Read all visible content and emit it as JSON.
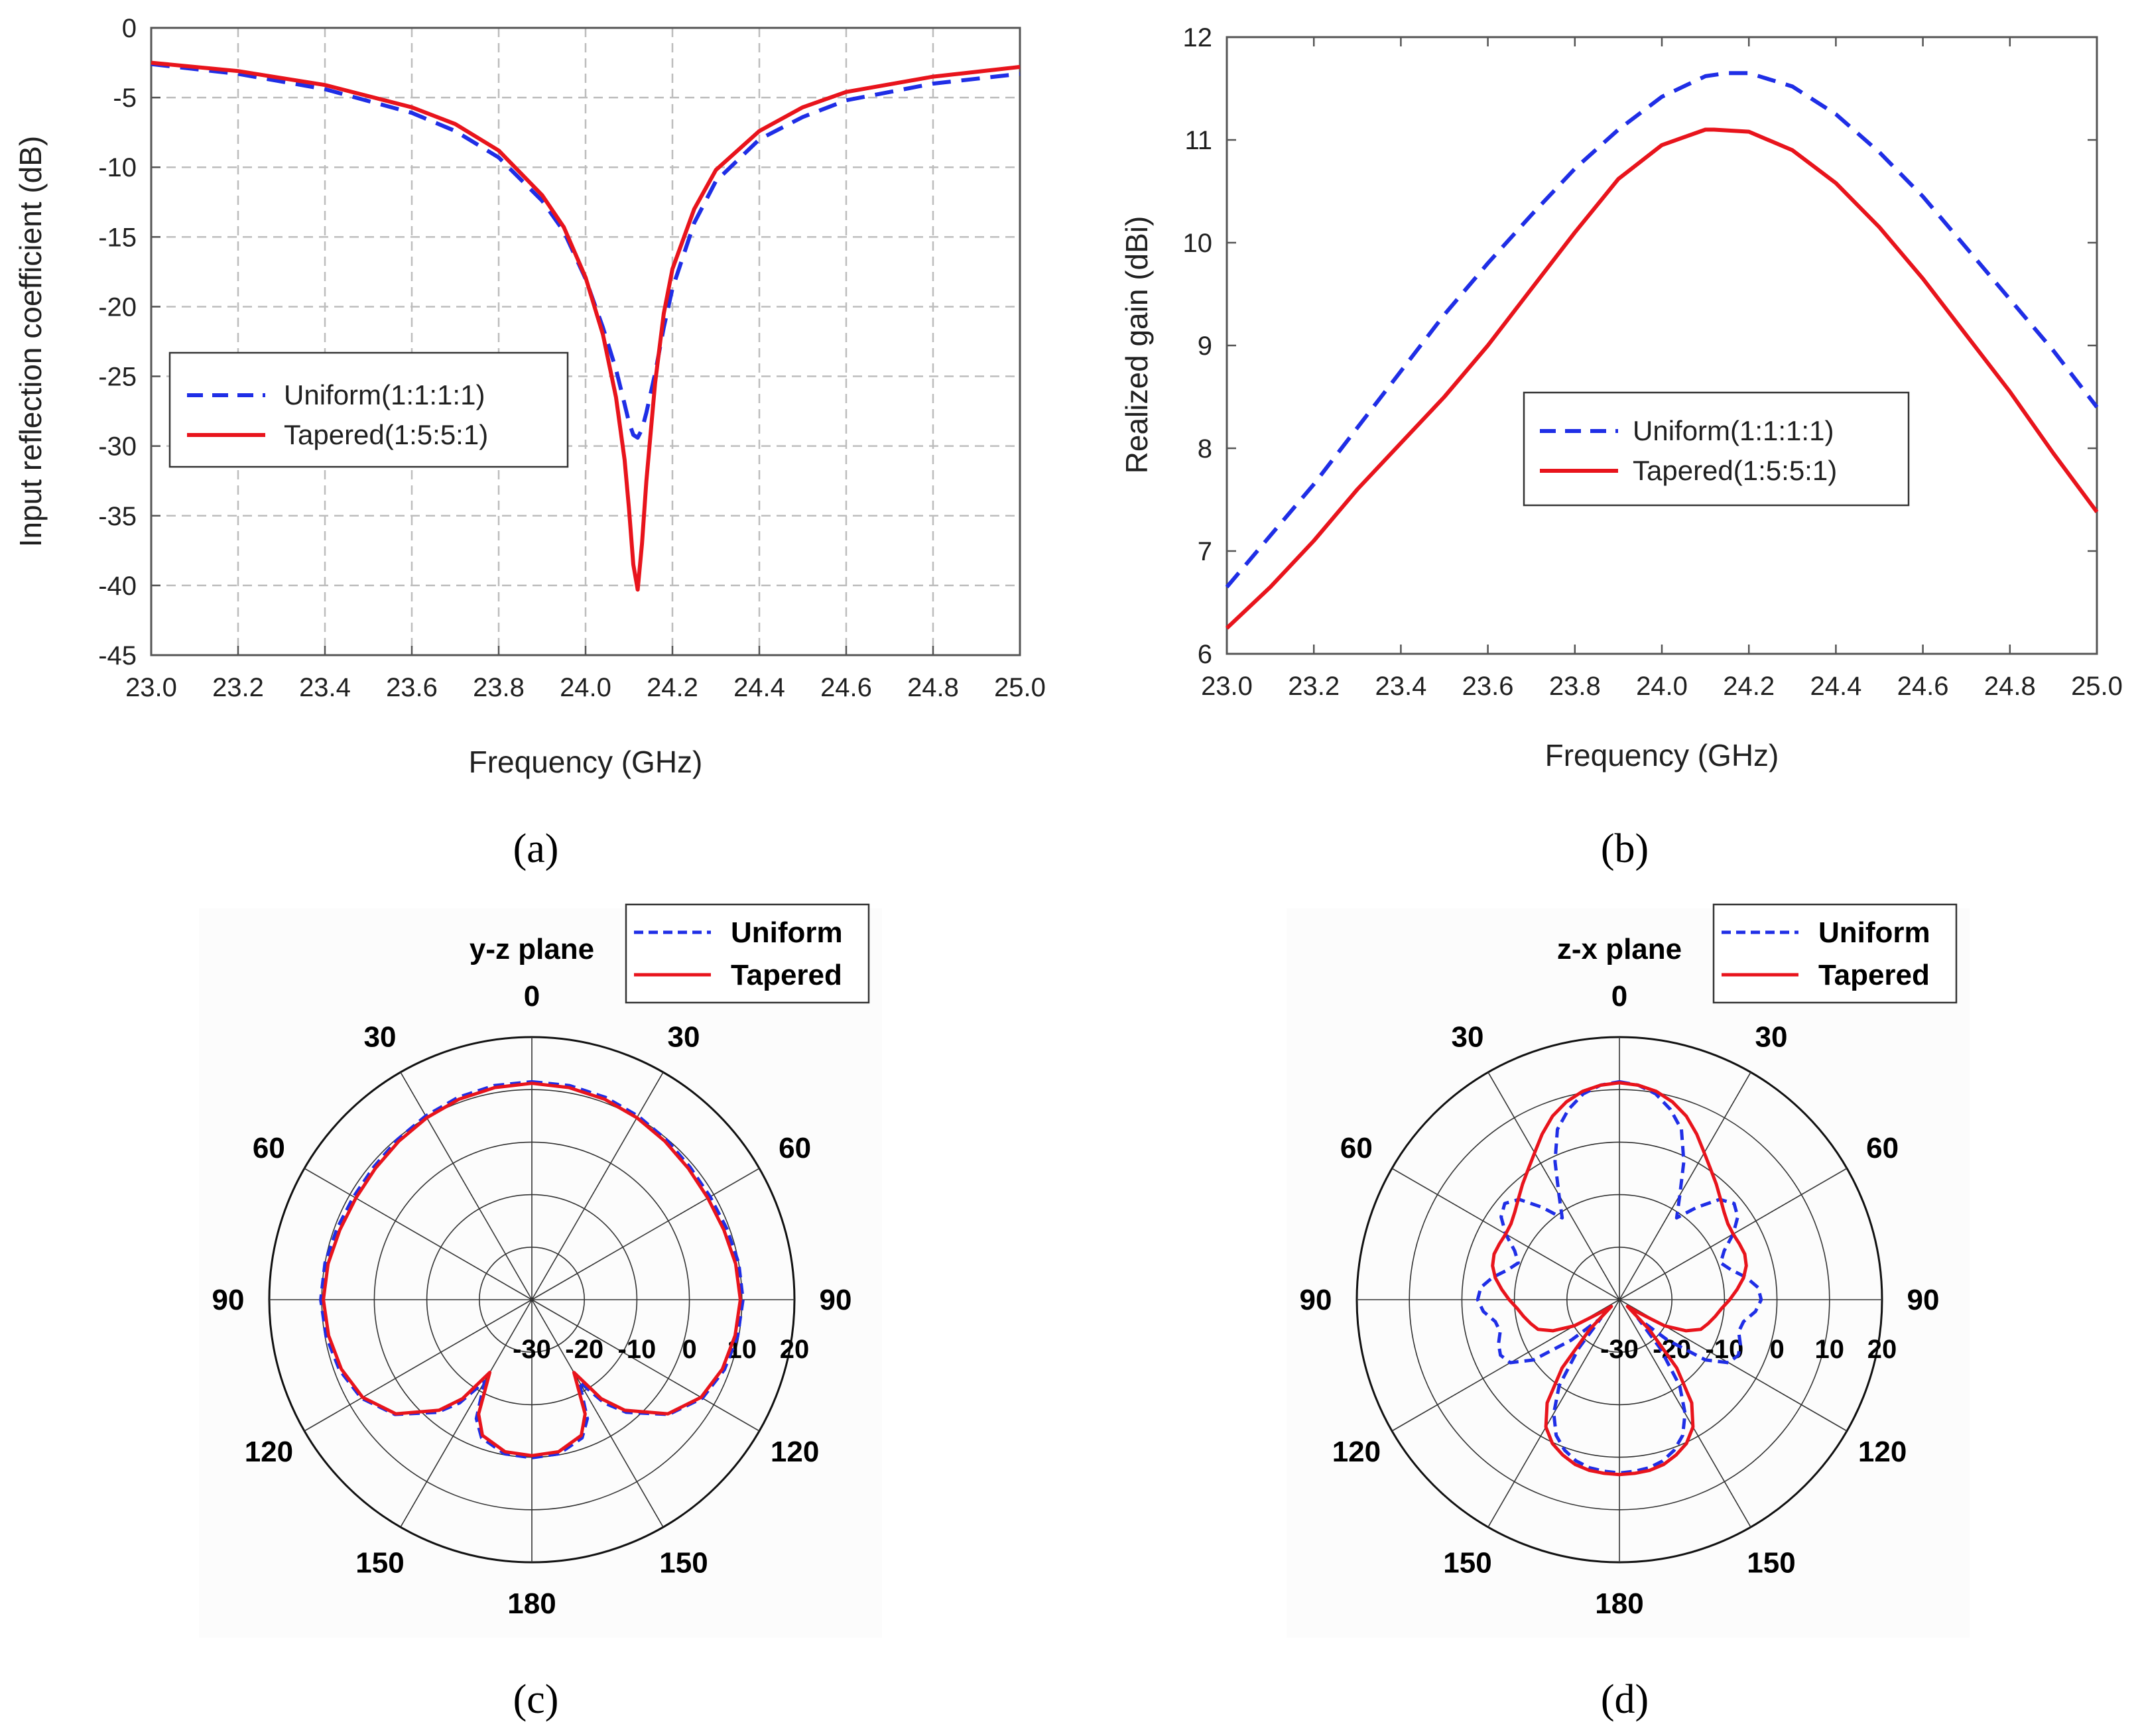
{
  "chart_data": [
    {
      "id": "a",
      "type": "line",
      "caption": "(a)",
      "xlabel": "Frequency (GHz)",
      "ylabel": "Input reflection coefficient (dB)",
      "xlim": [
        23.0,
        25.0
      ],
      "ylim": [
        -45,
        0
      ],
      "xticks": [
        "23.0",
        "23.2",
        "23.4",
        "23.6",
        "23.8",
        "24.0",
        "24.2",
        "24.4",
        "24.6",
        "24.8",
        "25.0"
      ],
      "yticks": [
        "0",
        "-5",
        "-10",
        "-15",
        "-20",
        "-25",
        "-30",
        "-35",
        "-40",
        "-45"
      ],
      "grid": true,
      "legend_position": "center-left",
      "series": [
        {
          "name": "Uniform(1:1:1:1)",
          "color": "#1f2ee6",
          "style": "dashed",
          "x": [
            23.0,
            23.2,
            23.4,
            23.6,
            23.7,
            23.8,
            23.9,
            23.95,
            24.0,
            24.04,
            24.07,
            24.09,
            24.1,
            24.11,
            24.12,
            24.13,
            24.14,
            24.16,
            24.18,
            24.2,
            24.25,
            24.3,
            24.4,
            24.5,
            24.6,
            24.8,
            25.0
          ],
          "y": [
            -2.6,
            -3.3,
            -4.4,
            -6.1,
            -7.4,
            -9.3,
            -12.4,
            -14.6,
            -18.0,
            -21.5,
            -24.5,
            -27.0,
            -28.3,
            -29.2,
            -29.4,
            -28.8,
            -27.6,
            -24.8,
            -21.5,
            -18.7,
            -14.0,
            -11.0,
            -8.0,
            -6.4,
            -5.2,
            -4.0,
            -3.3
          ]
        },
        {
          "name": "Tapered(1:5:5:1)",
          "color": "#e8141c",
          "style": "solid",
          "x": [
            23.0,
            23.2,
            23.4,
            23.6,
            23.7,
            23.8,
            23.9,
            23.95,
            24.0,
            24.04,
            24.07,
            24.09,
            24.1,
            24.11,
            24.12,
            24.13,
            24.14,
            24.16,
            24.18,
            24.2,
            24.25,
            24.3,
            24.4,
            24.5,
            24.6,
            24.8,
            25.0
          ],
          "y": [
            -2.5,
            -3.1,
            -4.1,
            -5.7,
            -6.9,
            -8.8,
            -12.0,
            -14.3,
            -17.9,
            -22.0,
            -26.5,
            -31.0,
            -34.5,
            -38.5,
            -40.3,
            -37.0,
            -32.5,
            -25.5,
            -20.5,
            -17.3,
            -13.0,
            -10.2,
            -7.4,
            -5.7,
            -4.6,
            -3.5,
            -2.8
          ]
        }
      ]
    },
    {
      "id": "b",
      "type": "line",
      "caption": "(b)",
      "xlabel": "Frequency (GHz)",
      "ylabel": "Realized gain (dBi)",
      "xlim": [
        23.0,
        25.0
      ],
      "ylim": [
        6,
        12
      ],
      "xticks": [
        "23.0",
        "23.2",
        "23.4",
        "23.6",
        "23.8",
        "24.0",
        "24.2",
        "24.4",
        "24.6",
        "24.8",
        "25.0"
      ],
      "yticks": [
        "12",
        "11",
        "10",
        "9",
        "8",
        "7",
        "6"
      ],
      "grid": false,
      "legend_position": "center-right",
      "series": [
        {
          "name": "Uniform(1:1:1:1)",
          "color": "#1f2ee6",
          "style": "dashed",
          "x": [
            23.0,
            23.1,
            23.2,
            23.3,
            23.4,
            23.5,
            23.6,
            23.7,
            23.8,
            23.9,
            24.0,
            24.1,
            24.15,
            24.2,
            24.3,
            24.4,
            24.5,
            24.6,
            24.7,
            24.8,
            24.9,
            25.0
          ],
          "y": [
            6.65,
            7.15,
            7.65,
            8.2,
            8.75,
            9.3,
            9.8,
            10.27,
            10.72,
            11.1,
            11.42,
            11.62,
            11.65,
            11.65,
            11.52,
            11.25,
            10.88,
            10.45,
            9.95,
            9.45,
            8.95,
            8.4
          ]
        },
        {
          "name": "Tapered(1:5:5:1)",
          "color": "#e8141c",
          "style": "solid",
          "x": [
            23.0,
            23.1,
            23.2,
            23.3,
            23.4,
            23.5,
            23.6,
            23.7,
            23.8,
            23.9,
            24.0,
            24.1,
            24.12,
            24.2,
            24.3,
            24.4,
            24.5,
            24.6,
            24.7,
            24.8,
            24.9,
            25.0
          ],
          "y": [
            6.25,
            6.65,
            7.1,
            7.6,
            8.05,
            8.5,
            9.0,
            9.55,
            10.1,
            10.62,
            10.95,
            11.1,
            11.1,
            11.08,
            10.9,
            10.58,
            10.15,
            9.65,
            9.1,
            8.55,
            7.95,
            7.38
          ]
        }
      ]
    },
    {
      "id": "c",
      "type": "polar",
      "caption": "(c)",
      "plane_label": "y-z plane",
      "angle_labels": [
        "0",
        "30",
        "60",
        "90",
        "120",
        "150",
        "180",
        "150",
        "120",
        "90",
        "60",
        "30"
      ],
      "radial_labels": [
        "-30",
        "-20",
        "-10",
        "0",
        "10",
        "20"
      ],
      "rlim": [
        -30,
        20
      ],
      "legend_position": "top-right",
      "series": [
        {
          "name": "Uniform",
          "color": "#1f2ee6",
          "style": "dashed",
          "theta": [
            0,
            10,
            20,
            30,
            40,
            50,
            60,
            70,
            80,
            90,
            100,
            110,
            120,
            130,
            140,
            145,
            150,
            155,
            160,
            170,
            180,
            190,
            200,
            205,
            210,
            215,
            220,
            230,
            240,
            250,
            260,
            270,
            280,
            290,
            300,
            310,
            320,
            330,
            340,
            350,
            360
          ],
          "r": [
            11.5,
            11.4,
            11.0,
            10.4,
            9.8,
            9.3,
            9.2,
            9.5,
            10.0,
            10.2,
            9.8,
            9.0,
            7.5,
            4.0,
            -2.0,
            -6.0,
            -12.0,
            -5.0,
            -2.0,
            -0.2,
            0.1,
            -0.2,
            -2.0,
            -5.0,
            -12.0,
            -6.0,
            -2.0,
            4.0,
            7.5,
            9.0,
            9.8,
            10.2,
            10.0,
            9.5,
            9.2,
            9.3,
            9.8,
            10.4,
            11.0,
            11.4,
            11.5
          ]
        },
        {
          "name": "Tapered",
          "color": "#e8141c",
          "style": "solid",
          "theta": [
            0,
            10,
            20,
            30,
            40,
            50,
            60,
            70,
            80,
            90,
            100,
            110,
            120,
            130,
            140,
            145,
            150,
            155,
            160,
            170,
            180,
            190,
            200,
            205,
            210,
            215,
            220,
            230,
            240,
            250,
            260,
            270,
            280,
            290,
            300,
            310,
            320,
            330,
            340,
            350,
            360
          ],
          "r": [
            11.2,
            11.0,
            10.6,
            10.0,
            9.4,
            8.9,
            8.7,
            8.9,
            9.4,
            9.7,
            9.3,
            8.6,
            7.2,
            3.8,
            -2.5,
            -7.0,
            -14.0,
            -6.0,
            -2.5,
            -0.6,
            -0.3,
            -0.6,
            -2.5,
            -6.0,
            -14.0,
            -7.0,
            -2.5,
            3.8,
            7.2,
            8.6,
            9.3,
            9.7,
            9.4,
            8.9,
            8.7,
            8.9,
            9.4,
            10.0,
            10.6,
            11.0,
            11.2
          ]
        }
      ]
    },
    {
      "id": "d",
      "type": "polar",
      "caption": "(d)",
      "plane_label": "z-x plane",
      "angle_labels": [
        "0",
        "30",
        "60",
        "90",
        "120",
        "150",
        "180",
        "150",
        "120",
        "90",
        "60",
        "30"
      ],
      "radial_labels": [
        "-30",
        "-20",
        "-10",
        "0",
        "10",
        "20"
      ],
      "rlim": [
        -30,
        20
      ],
      "legend_position": "top-right",
      "series": [
        {
          "name": "Uniform",
          "color": "#1f2ee6",
          "style": "dashed",
          "theta": [
            0,
            5,
            10,
            15,
            20,
            25,
            30,
            35,
            40,
            45,
            50,
            55,
            60,
            65,
            70,
            75,
            80,
            85,
            90,
            95,
            100,
            105,
            110,
            115,
            120,
            125,
            130,
            135,
            140,
            145,
            150,
            155,
            160,
            165,
            170,
            175,
            180,
            185,
            190,
            195,
            200,
            205,
            210,
            215,
            220,
            225,
            230,
            235,
            240,
            245,
            250,
            255,
            260,
            265,
            270,
            275,
            280,
            285,
            290,
            295,
            300,
            305,
            310,
            315,
            320,
            325,
            330,
            335,
            340,
            345,
            350,
            355,
            360
          ],
          "r": [
            11.5,
            11.0,
            9.8,
            7.5,
            4.5,
            -1.0,
            -7.0,
            -11.0,
            -7.0,
            -3.0,
            -1.5,
            -2.5,
            -5.0,
            -8.0,
            -9.5,
            -8.0,
            -5.5,
            -3.5,
            -3.0,
            -4.0,
            -6.0,
            -6.5,
            -5.5,
            -5.0,
            -6.0,
            -10.0,
            -18.0,
            -25.0,
            -18.0,
            -10.0,
            -5.0,
            -1.5,
            0.5,
            1.8,
            2.5,
            2.8,
            3.0,
            2.8,
            2.5,
            1.8,
            0.5,
            -1.5,
            -5.0,
            -10.0,
            -18.0,
            -25.0,
            -18.0,
            -10.0,
            -6.0,
            -5.0,
            -5.5,
            -6.5,
            -6.0,
            -4.0,
            -3.0,
            -3.5,
            -5.5,
            -8.0,
            -9.5,
            -8.0,
            -5.0,
            -2.5,
            -1.5,
            -3.0,
            -7.0,
            -11.0,
            -7.0,
            -1.0,
            4.5,
            7.5,
            9.8,
            11.0,
            11.5
          ]
        },
        {
          "name": "Tapered",
          "color": "#e8141c",
          "style": "solid",
          "theta": [
            0,
            5,
            10,
            15,
            20,
            25,
            30,
            35,
            40,
            45,
            50,
            55,
            60,
            65,
            70,
            75,
            80,
            85,
            90,
            95,
            100,
            105,
            110,
            115,
            120,
            125,
            130,
            135,
            140,
            145,
            150,
            155,
            160,
            165,
            170,
            175,
            180,
            185,
            190,
            195,
            200,
            205,
            210,
            215,
            220,
            225,
            230,
            235,
            240,
            245,
            250,
            255,
            260,
            265,
            270,
            275,
            280,
            285,
            290,
            295,
            300,
            305,
            310,
            315,
            320,
            325,
            330,
            335,
            340,
            345,
            350,
            355,
            360
          ],
          "r": [
            11.3,
            11.0,
            10.3,
            9.0,
            7.2,
            4.8,
            2.3,
            0.3,
            -1.3,
            -2.8,
            -4.0,
            -4.8,
            -5.0,
            -4.8,
            -4.6,
            -5.0,
            -6.0,
            -7.5,
            -9.0,
            -10.5,
            -11.5,
            -12.5,
            -13.5,
            -16.0,
            -20.0,
            -26.0,
            -28.0,
            -22.0,
            -13.0,
            -6.0,
            -2.0,
            0.2,
            1.5,
            2.5,
            3.0,
            3.2,
            3.3,
            3.2,
            3.0,
            2.5,
            1.5,
            0.2,
            -2.0,
            -6.0,
            -13.0,
            -22.0,
            -28.0,
            -26.0,
            -20.0,
            -16.0,
            -13.5,
            -12.5,
            -11.5,
            -10.5,
            -9.0,
            -7.5,
            -6.0,
            -5.0,
            -4.6,
            -4.8,
            -5.0,
            -4.8,
            -4.0,
            -2.8,
            -1.3,
            0.3,
            2.3,
            4.8,
            7.2,
            9.0,
            10.3,
            11.0,
            11.3
          ]
        }
      ]
    }
  ]
}
